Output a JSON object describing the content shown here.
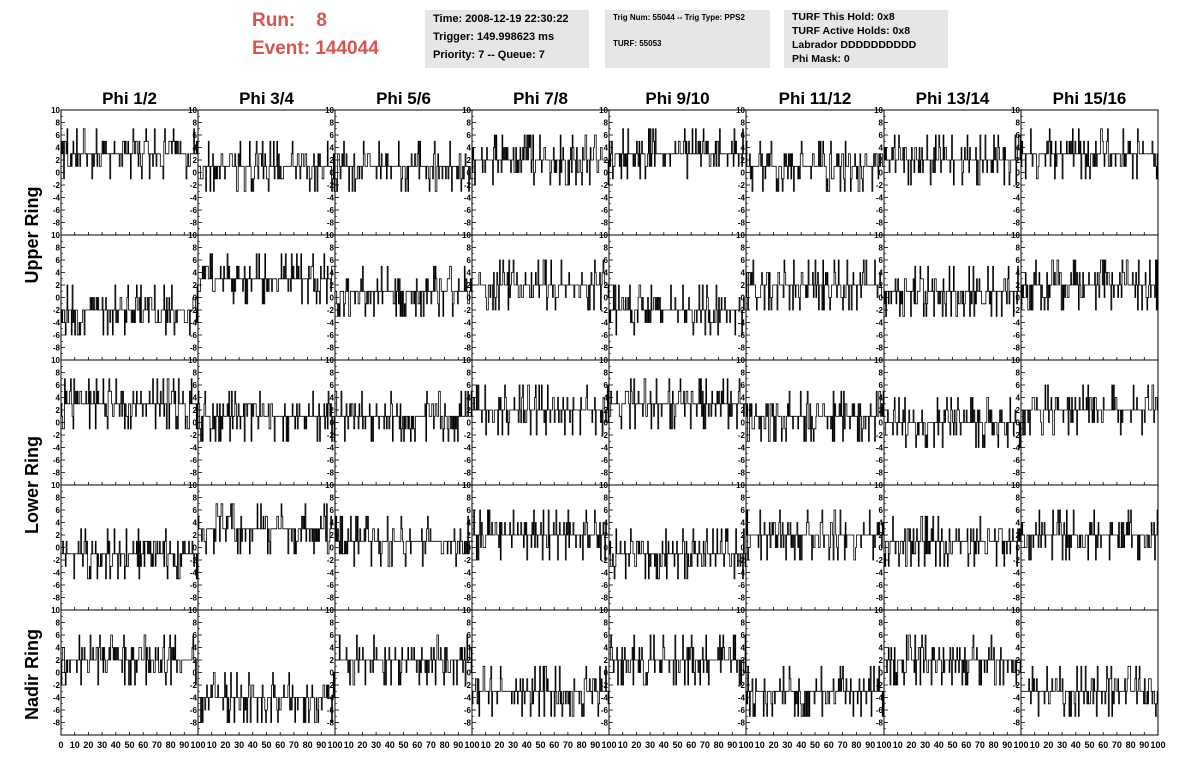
{
  "header": {
    "run_label": "Run:",
    "run_value": "8",
    "event_label": "Event:",
    "event_value": "144044",
    "time_box": [
      "Time: 2008-12-19 22:30:22",
      "Trigger: 149.998623 ms",
      "Priority: 7 -- Queue: 7"
    ],
    "trig_box": [
      "Trig Num: 55044 -- Trig Type: PPS2",
      "TURF: 55053"
    ],
    "turf_box": [
      "TURF This Hold: 0x8",
      "TURF Active Holds: 0x8",
      "Labrador DDDDDDDDDD",
      "Phi Mask: 0"
    ]
  },
  "columns": [
    "Phi 1/2",
    "Phi 3/4",
    "Phi 5/6",
    "Phi 7/8",
    "Phi 9/10",
    "Phi 11/12",
    "Phi 13/14",
    "Phi 15/16"
  ],
  "row_groups": [
    "Upper Ring",
    "Lower Ring",
    "Nadir Ring"
  ],
  "colors": {
    "title_red": "#d9534f",
    "info_bg": "#e6e6e6",
    "trace": "#000000"
  },
  "chart_data": {
    "type": "line",
    "description_of_grid": "5 rows x 8 columns of time-trace panels",
    "x_range": [
      0,
      100
    ],
    "y_range": [
      -10,
      10
    ],
    "x_ticks": [
      0,
      10,
      20,
      30,
      40,
      50,
      60,
      70,
      80,
      90,
      100
    ],
    "y_ticks": [
      -8,
      -6,
      -4,
      -2,
      0,
      2,
      4,
      6,
      8,
      10
    ],
    "panel_baselines": [
      [
        3,
        1,
        1,
        2,
        3,
        1,
        2,
        3
      ],
      [
        -2,
        3,
        1,
        2,
        -2,
        2,
        1,
        2
      ],
      [
        3,
        1,
        1,
        2,
        3,
        1,
        0,
        2
      ],
      [
        -1,
        3,
        1,
        2,
        -1,
        2,
        1,
        2
      ],
      [
        2,
        -4,
        2,
        -3,
        2,
        -3,
        2,
        -3
      ]
    ]
  }
}
